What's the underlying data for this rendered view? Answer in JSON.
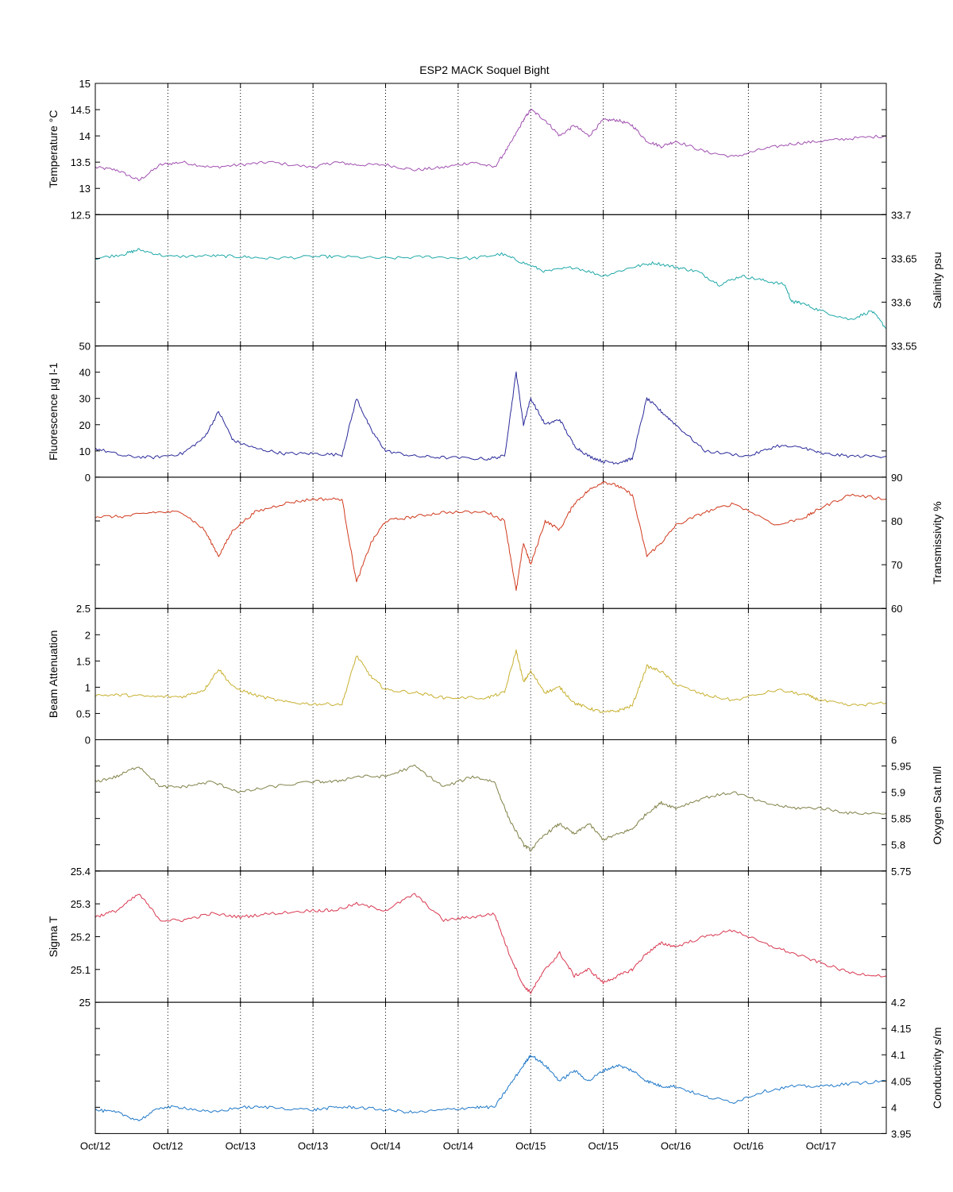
{
  "chart_data": {
    "type": "line",
    "title": "ESP2 MACK  Soquel Bight",
    "x_tick_labels": [
      "Oct/12",
      "Oct/12",
      "Oct/13",
      "Oct/13",
      "Oct/14",
      "Oct/14",
      "Oct/15",
      "Oct/15",
      "Oct/16",
      "Oct/16",
      "Oct/17"
    ],
    "x_grid": true,
    "x_units": "days",
    "xlim": [
      0,
      5.45
    ],
    "x_tick_values": [
      0,
      0.5,
      1,
      1.5,
      2,
      2.5,
      3,
      3.5,
      4,
      4.5,
      5
    ],
    "panels": [
      {
        "ylabel": "Temperature °C",
        "axis_side": "left",
        "ylim": [
          12.5,
          15
        ],
        "yticks": [
          12.5,
          13,
          13.5,
          14,
          14.5,
          15
        ],
        "color": "#a050b0",
        "x": [
          0,
          0.15,
          0.3,
          0.45,
          0.6,
          0.8,
          1.0,
          1.2,
          1.5,
          1.65,
          1.8,
          2.0,
          2.2,
          2.4,
          2.6,
          2.75,
          2.85,
          2.95,
          3.0,
          3.1,
          3.2,
          3.3,
          3.4,
          3.5,
          3.6,
          3.7,
          3.8,
          3.9,
          4.0,
          4.2,
          4.4,
          4.6,
          4.8,
          5.0,
          5.2,
          5.45
        ],
        "y": [
          13.4,
          13.35,
          13.15,
          13.45,
          13.5,
          13.4,
          13.45,
          13.5,
          13.4,
          13.5,
          13.45,
          13.45,
          13.35,
          13.4,
          13.5,
          13.4,
          13.8,
          14.3,
          14.5,
          14.3,
          14.0,
          14.2,
          14.0,
          14.3,
          14.3,
          14.2,
          13.9,
          13.8,
          13.9,
          13.7,
          13.6,
          13.75,
          13.85,
          13.9,
          13.95,
          14.0
        ]
      },
      {
        "ylabel": "Salinity psu",
        "axis_side": "right",
        "ylim": [
          33.55,
          33.7
        ],
        "yticks": [
          33.55,
          33.6,
          33.65,
          33.7
        ],
        "color": "#20a8a8",
        "x": [
          0,
          0.2,
          0.3,
          0.5,
          0.8,
          1.0,
          1.2,
          1.5,
          1.7,
          2.0,
          2.3,
          2.6,
          2.8,
          2.95,
          3.1,
          3.3,
          3.5,
          3.7,
          3.85,
          4.0,
          4.15,
          4.3,
          4.45,
          4.6,
          4.75,
          4.8,
          4.85,
          5.0,
          5.2,
          5.35,
          5.45
        ],
        "y": [
          33.65,
          33.655,
          33.66,
          33.652,
          33.653,
          33.652,
          33.65,
          33.652,
          33.652,
          33.65,
          33.652,
          33.65,
          33.655,
          33.645,
          33.635,
          33.64,
          33.63,
          33.64,
          33.645,
          33.64,
          33.635,
          33.62,
          33.63,
          33.625,
          33.62,
          33.6,
          33.6,
          33.59,
          33.58,
          33.59,
          33.57
        ]
      },
      {
        "ylabel": "Fluorescence µg l-1",
        "axis_side": "left",
        "ylim": [
          0,
          50
        ],
        "yticks": [
          0,
          10,
          20,
          30,
          40,
          50
        ],
        "color": "#2a2a9a",
        "x": [
          0,
          0.2,
          0.4,
          0.6,
          0.75,
          0.85,
          0.95,
          1.1,
          1.3,
          1.5,
          1.7,
          1.8,
          1.9,
          2.0,
          2.2,
          2.4,
          2.7,
          2.82,
          2.9,
          2.95,
          3.0,
          3.1,
          3.2,
          3.3,
          3.4,
          3.5,
          3.6,
          3.7,
          3.8,
          3.9,
          4.0,
          4.2,
          4.5,
          4.7,
          4.9,
          5.0,
          5.2,
          5.45
        ],
        "y": [
          11,
          8,
          7.5,
          9,
          15,
          25,
          14,
          11,
          9,
          9,
          8.5,
          30,
          18,
          10,
          8,
          7.5,
          7,
          8,
          40,
          20,
          30,
          20,
          22,
          12,
          8,
          6,
          5.5,
          7,
          30,
          25,
          20,
          10,
          8,
          12,
          11,
          9,
          8,
          8
        ]
      },
      {
        "ylabel": "Transmissivity %",
        "axis_side": "right",
        "ylim": [
          60,
          90
        ],
        "yticks": [
          60,
          70,
          80,
          90
        ],
        "color": "#d03a1e",
        "x": [
          0,
          0.2,
          0.4,
          0.6,
          0.75,
          0.85,
          0.95,
          1.1,
          1.3,
          1.5,
          1.7,
          1.8,
          1.9,
          2.0,
          2.2,
          2.4,
          2.7,
          2.82,
          2.9,
          2.95,
          3.0,
          3.1,
          3.2,
          3.3,
          3.4,
          3.5,
          3.6,
          3.7,
          3.8,
          3.9,
          4.0,
          4.2,
          4.4,
          4.7,
          4.9,
          5.0,
          5.2,
          5.45
        ],
        "y": [
          81,
          81,
          82,
          82,
          78,
          72,
          78,
          82,
          84,
          85,
          85,
          66,
          75,
          80,
          81,
          82,
          82,
          80,
          64,
          75,
          70,
          80,
          78,
          84,
          87,
          89,
          88,
          86,
          72,
          75,
          79,
          82,
          84,
          79,
          81,
          83,
          86,
          85
        ]
      },
      {
        "ylabel": "Beam Attenuation",
        "axis_side": "left",
        "ylim": [
          0,
          2.5
        ],
        "yticks": [
          0,
          0.5,
          1,
          1.5,
          2,
          2.5
        ],
        "color": "#c8b030",
        "x": [
          0,
          0.2,
          0.4,
          0.6,
          0.75,
          0.85,
          0.95,
          1.1,
          1.3,
          1.5,
          1.7,
          1.8,
          1.9,
          2.0,
          2.2,
          2.4,
          2.7,
          2.82,
          2.9,
          2.95,
          3.0,
          3.1,
          3.2,
          3.3,
          3.4,
          3.5,
          3.6,
          3.7,
          3.8,
          3.9,
          4.0,
          4.2,
          4.4,
          4.7,
          4.9,
          5.0,
          5.2,
          5.45
        ],
        "y": [
          0.85,
          0.85,
          0.82,
          0.82,
          0.95,
          1.35,
          1.0,
          0.85,
          0.72,
          0.68,
          0.68,
          1.6,
          1.2,
          0.95,
          0.9,
          0.8,
          0.8,
          0.9,
          1.7,
          1.1,
          1.3,
          0.9,
          1.0,
          0.7,
          0.6,
          0.52,
          0.55,
          0.65,
          1.4,
          1.3,
          1.05,
          0.85,
          0.75,
          0.95,
          0.85,
          0.75,
          0.65,
          0.7
        ]
      },
      {
        "ylabel": "Oxygen Sat ml/l",
        "axis_side": "right",
        "ylim": [
          5.75,
          6
        ],
        "yticks": [
          5.75,
          5.8,
          5.85,
          5.9,
          5.95,
          6
        ],
        "color": "#808048",
        "x": [
          0,
          0.15,
          0.3,
          0.45,
          0.6,
          0.8,
          1.0,
          1.2,
          1.5,
          1.65,
          1.8,
          2.0,
          2.2,
          2.4,
          2.6,
          2.75,
          2.85,
          2.95,
          3.0,
          3.1,
          3.2,
          3.3,
          3.4,
          3.5,
          3.6,
          3.7,
          3.8,
          3.9,
          4.0,
          4.2,
          4.4,
          4.6,
          4.8,
          5.0,
          5.2,
          5.45
        ],
        "y": [
          5.92,
          5.93,
          5.95,
          5.91,
          5.91,
          5.92,
          5.9,
          5.91,
          5.92,
          5.92,
          5.93,
          5.93,
          5.95,
          5.91,
          5.93,
          5.92,
          5.85,
          5.8,
          5.79,
          5.82,
          5.84,
          5.82,
          5.84,
          5.81,
          5.82,
          5.83,
          5.86,
          5.88,
          5.87,
          5.89,
          5.9,
          5.88,
          5.87,
          5.87,
          5.86,
          5.86
        ]
      },
      {
        "ylabel": "Sigma T",
        "axis_side": "left",
        "ylim": [
          25,
          25.4
        ],
        "yticks": [
          25,
          25.1,
          25.2,
          25.3,
          25.4
        ],
        "color": "#d83850",
        "x": [
          0,
          0.15,
          0.3,
          0.45,
          0.6,
          0.8,
          1.0,
          1.2,
          1.5,
          1.65,
          1.8,
          2.0,
          2.2,
          2.4,
          2.6,
          2.75,
          2.85,
          2.95,
          3.0,
          3.1,
          3.2,
          3.3,
          3.4,
          3.5,
          3.6,
          3.7,
          3.8,
          3.9,
          4.0,
          4.2,
          4.4,
          4.6,
          4.8,
          5.0,
          5.2,
          5.45
        ],
        "y": [
          25.26,
          25.28,
          25.33,
          25.25,
          25.25,
          25.27,
          25.26,
          25.27,
          25.28,
          25.28,
          25.3,
          25.28,
          25.33,
          25.25,
          25.26,
          25.27,
          25.15,
          25.05,
          25.03,
          25.1,
          25.15,
          25.08,
          25.1,
          25.06,
          25.08,
          25.1,
          25.15,
          25.18,
          25.17,
          25.2,
          25.22,
          25.18,
          25.15,
          25.12,
          25.09,
          25.08
        ]
      },
      {
        "ylabel": "Conductivity s/m",
        "axis_side": "right",
        "ylim": [
          3.95,
          4.2
        ],
        "yticks": [
          3.95,
          4,
          4.05,
          4.1,
          4.15,
          4.2
        ],
        "color": "#1f78c8",
        "x": [
          0,
          0.15,
          0.3,
          0.45,
          0.6,
          0.8,
          1.0,
          1.2,
          1.5,
          1.65,
          1.8,
          2.0,
          2.2,
          2.4,
          2.6,
          2.75,
          2.85,
          2.95,
          3.0,
          3.1,
          3.2,
          3.3,
          3.4,
          3.5,
          3.6,
          3.7,
          3.8,
          3.9,
          4.0,
          4.2,
          4.4,
          4.6,
          4.8,
          5.0,
          5.2,
          5.45
        ],
        "y": [
          3.995,
          3.99,
          3.975,
          4.0,
          4.0,
          3.99,
          4.0,
          4.0,
          3.995,
          4.0,
          4.0,
          3.995,
          3.99,
          3.995,
          4.0,
          4.0,
          4.04,
          4.08,
          4.1,
          4.08,
          4.05,
          4.07,
          4.05,
          4.07,
          4.08,
          4.07,
          4.05,
          4.04,
          4.04,
          4.02,
          4.01,
          4.03,
          4.04,
          4.04,
          4.045,
          4.05
        ]
      }
    ]
  }
}
